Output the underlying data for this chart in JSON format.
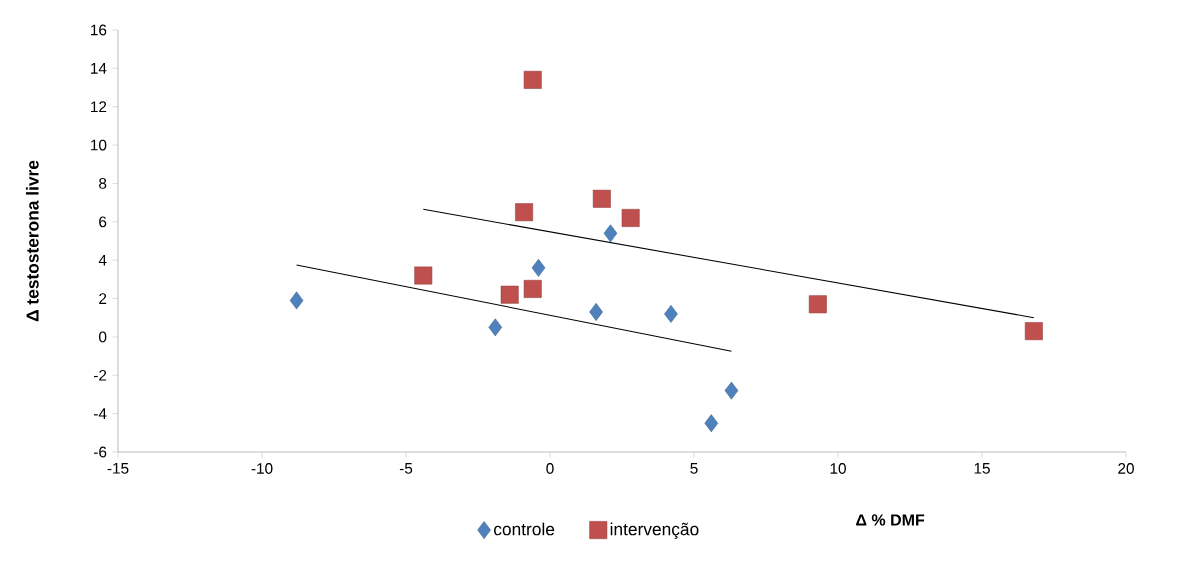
{
  "chart_data": {
    "type": "scatter",
    "xlabel": "Δ % DMF",
    "ylabel": "Δ testosterona livre",
    "xlim": [
      -15,
      20
    ],
    "ylim": [
      -6,
      16
    ],
    "xticks": [
      -15,
      -10,
      -5,
      0,
      5,
      10,
      15,
      20
    ],
    "yticks": [
      -6,
      -4,
      -2,
      0,
      2,
      4,
      6,
      8,
      10,
      12,
      14,
      16
    ],
    "legend": "bottom",
    "series": [
      {
        "name": "controle",
        "color": "#4f81bd",
        "marker": "diamond",
        "x": [
          -8.8,
          -1.9,
          -0.4,
          1.6,
          2.1,
          4.2,
          5.6,
          6.3
        ],
        "values": [
          1.9,
          0.5,
          3.6,
          1.3,
          5.4,
          1.2,
          -4.5,
          -2.8
        ]
      },
      {
        "name": "intervenção",
        "color": "#c0504d",
        "marker": "square",
        "x": [
          -4.4,
          -1.4,
          -0.9,
          -0.6,
          -0.6,
          1.8,
          2.8,
          9.3,
          16.8
        ],
        "values": [
          3.2,
          2.2,
          6.5,
          2.5,
          13.4,
          7.2,
          6.2,
          1.7,
          0.3
        ]
      },
      {
        "type": "line",
        "color": "#000000",
        "marker": "none",
        "x": [
          -8.8,
          6.3
        ],
        "values": [
          3.75,
          -0.75
        ]
      },
      {
        "type": "line",
        "color": "#000000",
        "marker": "none",
        "x": [
          -4.4,
          16.8
        ],
        "values": [
          6.65,
          1.0
        ]
      }
    ]
  }
}
